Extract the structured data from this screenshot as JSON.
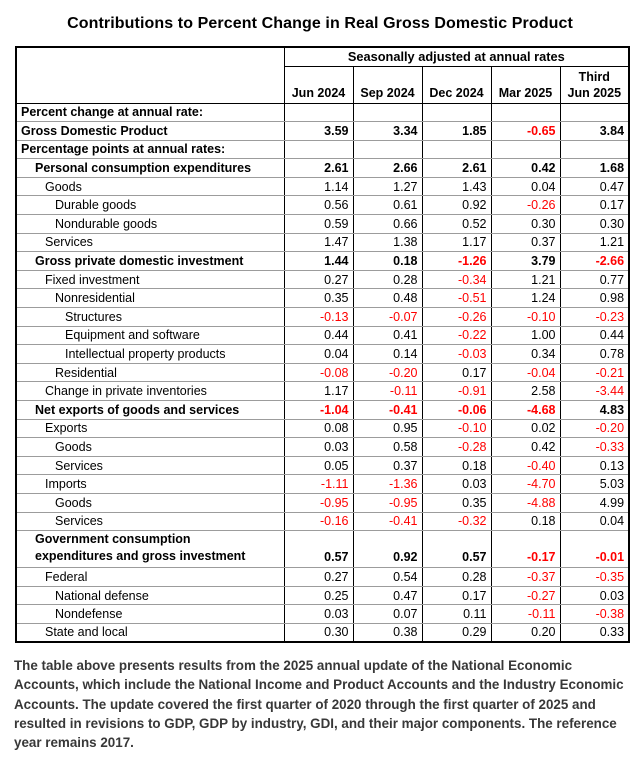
{
  "title": "Contributions to Percent Change in Real Gross Domestic Product",
  "colors": {
    "negative_value": "#ff0000",
    "grid_line": "#9c9c9c",
    "outer_border": "#000000",
    "footnote_text": "#383838"
  },
  "table": {
    "group_header": "Seasonally adjusted at annual rates",
    "columns": [
      "Jun 2024",
      "Sep 2024",
      "Dec 2024",
      "Mar 2025",
      "Third\nJun 2025"
    ],
    "rows": [
      {
        "label": "Percent change at annual rate:",
        "indent": 0,
        "bold": true,
        "section_top": false,
        "values": [
          "",
          "",
          "",
          "",
          ""
        ]
      },
      {
        "label": "Gross Domestic Product",
        "indent": 0,
        "bold": true,
        "section_top": true,
        "values": [
          "3.59",
          "3.34",
          "1.85",
          "-0.65",
          "3.84"
        ]
      },
      {
        "label": "Percentage points at annual rates:",
        "indent": 0,
        "bold": true,
        "section_top": true,
        "values": [
          "",
          "",
          "",
          "",
          ""
        ]
      },
      {
        "label": "Personal consumption expenditures",
        "indent": 1,
        "bold": true,
        "section_top": true,
        "values": [
          "2.61",
          "2.66",
          "2.61",
          "0.42",
          "1.68"
        ]
      },
      {
        "label": "Goods",
        "indent": 2,
        "bold": false,
        "section_top": false,
        "values": [
          "1.14",
          "1.27",
          "1.43",
          "0.04",
          "0.47"
        ]
      },
      {
        "label": "Durable goods",
        "indent": 3,
        "bold": false,
        "section_top": false,
        "values": [
          "0.56",
          "0.61",
          "0.92",
          "-0.26",
          "0.17"
        ]
      },
      {
        "label": "Nondurable goods",
        "indent": 3,
        "bold": false,
        "section_top": false,
        "values": [
          "0.59",
          "0.66",
          "0.52",
          "0.30",
          "0.30"
        ]
      },
      {
        "label": "Services",
        "indent": 2,
        "bold": false,
        "section_top": false,
        "values": [
          "1.47",
          "1.38",
          "1.17",
          "0.37",
          "1.21"
        ]
      },
      {
        "label": "Gross private domestic investment",
        "indent": 1,
        "bold": true,
        "section_top": true,
        "values": [
          "1.44",
          "0.18",
          "-1.26",
          "3.79",
          "-2.66"
        ]
      },
      {
        "label": "Fixed investment",
        "indent": 2,
        "bold": false,
        "section_top": false,
        "values": [
          "0.27",
          "0.28",
          "-0.34",
          "1.21",
          "0.77"
        ]
      },
      {
        "label": "Nonresidential",
        "indent": 3,
        "bold": false,
        "section_top": false,
        "values": [
          "0.35",
          "0.48",
          "-0.51",
          "1.24",
          "0.98"
        ]
      },
      {
        "label": "Structures",
        "indent": 4,
        "bold": false,
        "section_top": false,
        "values": [
          "-0.13",
          "-0.07",
          "-0.26",
          "-0.10",
          "-0.23"
        ]
      },
      {
        "label": "Equipment and software",
        "indent": 4,
        "bold": false,
        "section_top": false,
        "values": [
          "0.44",
          "0.41",
          "-0.22",
          "1.00",
          "0.44"
        ]
      },
      {
        "label": "Intellectual property products",
        "indent": 4,
        "bold": false,
        "section_top": false,
        "values": [
          "0.04",
          "0.14",
          "-0.03",
          "0.34",
          "0.78"
        ]
      },
      {
        "label": "Residential",
        "indent": 3,
        "bold": false,
        "section_top": false,
        "values": [
          "-0.08",
          "-0.20",
          "0.17",
          "-0.04",
          "-0.21"
        ]
      },
      {
        "label": "Change in private inventories",
        "indent": 2,
        "bold": false,
        "section_top": false,
        "values": [
          "1.17",
          "-0.11",
          "-0.91",
          "2.58",
          "-3.44"
        ]
      },
      {
        "label": "Net exports of goods and services",
        "indent": 1,
        "bold": true,
        "section_top": true,
        "values": [
          "-1.04",
          "-0.41",
          "-0.06",
          "-4.68",
          "4.83"
        ]
      },
      {
        "label": "Exports",
        "indent": 2,
        "bold": false,
        "section_top": false,
        "values": [
          "0.08",
          "0.95",
          "-0.10",
          "0.02",
          "-0.20"
        ]
      },
      {
        "label": "Goods",
        "indent": 3,
        "bold": false,
        "section_top": false,
        "values": [
          "0.03",
          "0.58",
          "-0.28",
          "0.42",
          "-0.33"
        ]
      },
      {
        "label": "Services",
        "indent": 3,
        "bold": false,
        "section_top": false,
        "values": [
          "0.05",
          "0.37",
          "0.18",
          "-0.40",
          "0.13"
        ]
      },
      {
        "label": "Imports",
        "indent": 2,
        "bold": false,
        "section_top": false,
        "values": [
          "-1.11",
          "-1.36",
          "0.03",
          "-4.70",
          "5.03"
        ]
      },
      {
        "label": "Goods",
        "indent": 3,
        "bold": false,
        "section_top": false,
        "values": [
          "-0.95",
          "-0.95",
          "0.35",
          "-4.88",
          "4.99"
        ]
      },
      {
        "label": "Services",
        "indent": 3,
        "bold": false,
        "section_top": false,
        "values": [
          "-0.16",
          "-0.41",
          "-0.32",
          "0.18",
          "0.04"
        ]
      },
      {
        "label": "Government consumption\nexpenditures and gross investment",
        "indent": 1,
        "bold": true,
        "section_top": true,
        "tall": true,
        "values": [
          "0.57",
          "0.92",
          "0.57",
          "-0.17",
          "-0.01"
        ]
      },
      {
        "label": "Federal",
        "indent": 2,
        "bold": false,
        "section_top": false,
        "values": [
          "0.27",
          "0.54",
          "0.28",
          "-0.37",
          "-0.35"
        ]
      },
      {
        "label": "National defense",
        "indent": 3,
        "bold": false,
        "section_top": false,
        "values": [
          "0.25",
          "0.47",
          "0.17",
          "-0.27",
          "0.03"
        ]
      },
      {
        "label": "Nondefense",
        "indent": 3,
        "bold": false,
        "section_top": false,
        "values": [
          "0.03",
          "0.07",
          "0.11",
          "-0.11",
          "-0.38"
        ]
      },
      {
        "label": "State and local",
        "indent": 2,
        "bold": false,
        "section_top": false,
        "values": [
          "0.30",
          "0.38",
          "0.29",
          "0.20",
          "0.33"
        ]
      }
    ]
  },
  "footnote": "The table above presents results from the 2025 annual update of the National Economic Accounts, which include the National Income and Product Accounts and the Industry Economic Accounts. The update covered the first quarter of 2020 through the first quarter of 2025 and resulted in revisions to GDP, GDP by industry, GDI, and their major components. The reference year remains 2017."
}
